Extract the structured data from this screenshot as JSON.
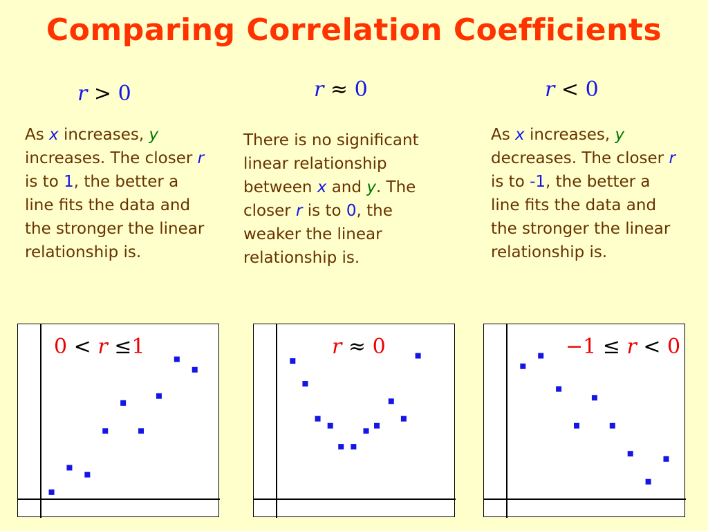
{
  "title": "Comparing Correlation Coefficients",
  "columns": [
    {
      "relation": {
        "var": "r",
        "op": ">",
        "val": "0"
      },
      "desc": {
        "p1": "As ",
        "x": "x",
        "p2": " increases, ",
        "y": "y",
        "p3": " increases.  The closer ",
        "r": "r",
        "p4": " is to ",
        "num": "1",
        "p5": ", the better a line fits the data and the stronger the linear relationship is."
      },
      "plot_label": {
        "a": "0",
        "op1": "<",
        "var": "r",
        "op2": "≤",
        "b": "1"
      }
    },
    {
      "relation": {
        "var": "r",
        "op": "≈",
        "val": "0"
      },
      "desc": {
        "p1": "There is no significant linear relationship between  ",
        "x": "x",
        "p2": " and ",
        "y": "y",
        "p3": ".  The closer ",
        "r": "r",
        "p4": " is to ",
        "num": "0",
        "p5": ", the weaker the linear relationship is."
      },
      "plot_label": {
        "var": "r",
        "op": "≈",
        "val": "0"
      }
    },
    {
      "relation": {
        "var": "r",
        "op": "<",
        "val": "0"
      },
      "desc": {
        "p1": "As ",
        "x": "x",
        "p2": " increases, ",
        "y": "y",
        "p3": " decreases.  The closer ",
        "r": "r",
        "p4": " is to ",
        "num": "-1",
        "p5": ", the better a line fits the data and the stronger the linear relationship is."
      },
      "plot_label": {
        "a": "−1",
        "op1": "≤",
        "var": "r",
        "op2": "<",
        "b": "0"
      }
    }
  ],
  "colors": {
    "title": "#FF3300",
    "points": "#1515E6",
    "plot_label": "#EE0000",
    "text": "#663300",
    "background": "#FFFFCC"
  },
  "chart_data": [
    {
      "type": "scatter",
      "title": "",
      "xlabel": "",
      "ylabel": "",
      "xlim": [
        0,
        10
      ],
      "ylim": [
        0,
        10
      ],
      "points": [
        [
          0.6,
          0.4
        ],
        [
          1.6,
          1.8
        ],
        [
          2.6,
          1.4
        ],
        [
          3.6,
          3.9
        ],
        [
          4.6,
          5.5
        ],
        [
          5.6,
          3.9
        ],
        [
          6.6,
          5.9
        ],
        [
          7.6,
          8.0
        ],
        [
          8.6,
          7.4
        ]
      ]
    },
    {
      "type": "scatter",
      "title": "",
      "xlabel": "",
      "ylabel": "",
      "xlim": [
        0,
        10
      ],
      "ylim": [
        0,
        10
      ],
      "points": [
        [
          0.9,
          7.9
        ],
        [
          1.6,
          6.6
        ],
        [
          2.3,
          4.6
        ],
        [
          3.0,
          4.2
        ],
        [
          3.6,
          3.0
        ],
        [
          4.3,
          3.0
        ],
        [
          5.0,
          3.9
        ],
        [
          5.6,
          4.2
        ],
        [
          6.4,
          5.6
        ],
        [
          7.1,
          4.6
        ],
        [
          7.9,
          8.2
        ]
      ]
    },
    {
      "type": "scatter",
      "title": "",
      "xlabel": "",
      "ylabel": "",
      "xlim": [
        0,
        10
      ],
      "ylim": [
        0,
        10
      ],
      "points": [
        [
          0.9,
          7.6
        ],
        [
          1.9,
          8.2
        ],
        [
          2.9,
          6.3
        ],
        [
          3.9,
          4.2
        ],
        [
          4.9,
          5.8
        ],
        [
          5.9,
          4.2
        ],
        [
          6.9,
          2.6
        ],
        [
          7.9,
          1.0
        ],
        [
          8.9,
          2.3
        ]
      ]
    }
  ]
}
